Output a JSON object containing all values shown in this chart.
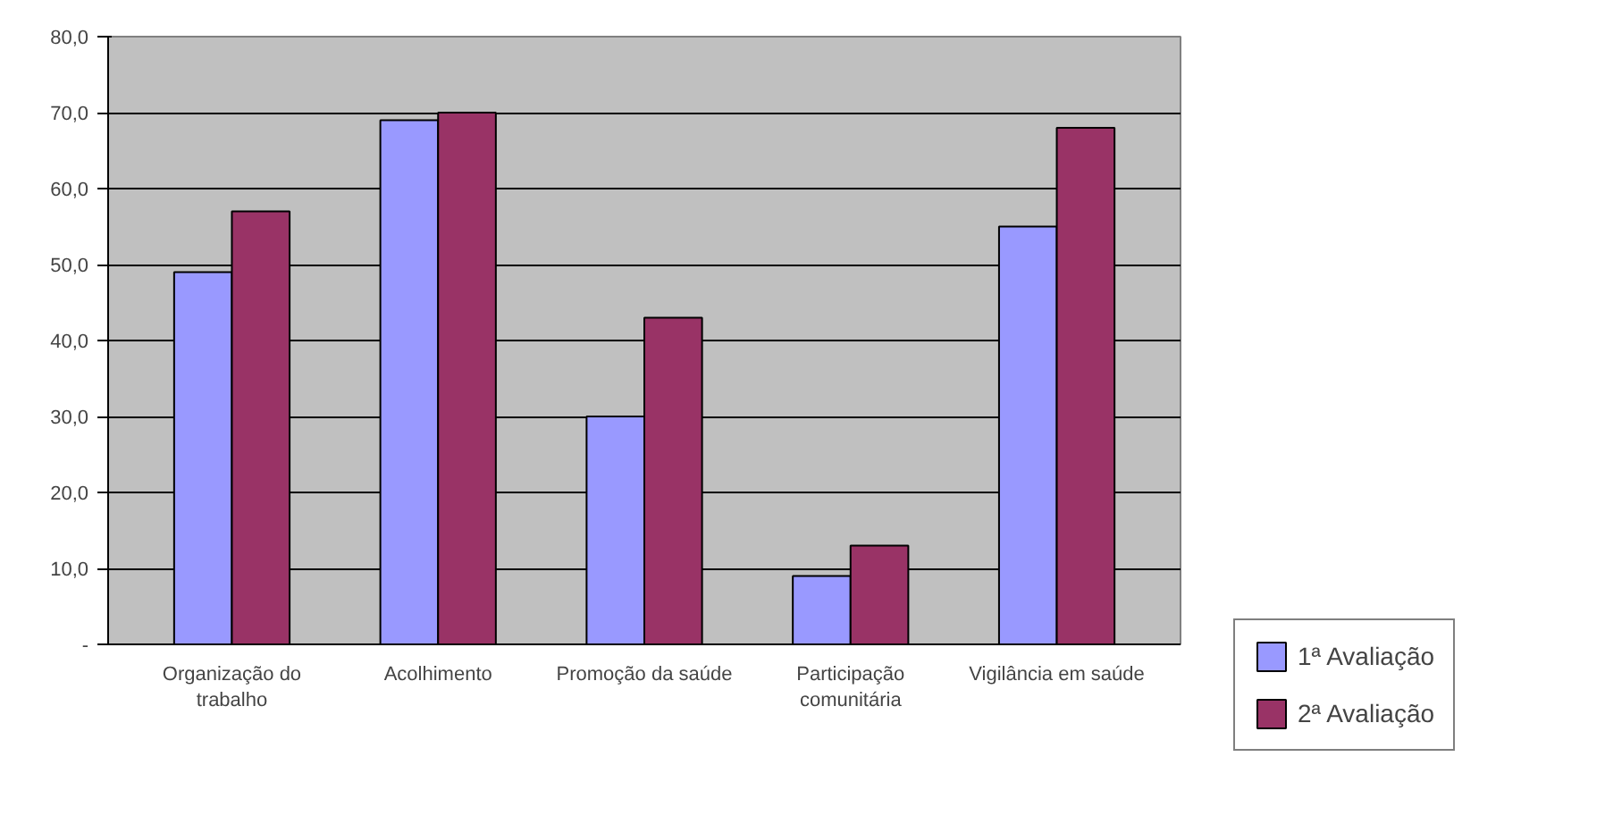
{
  "chart_data": {
    "type": "bar",
    "categories": [
      "Organização do trabalho",
      "Acolhimento",
      "Promoção da saúde",
      "Participação comunitária",
      "Vigilância em saúde"
    ],
    "series": [
      {
        "name": "1ª Avaliação",
        "color": "#9999ff",
        "values": [
          49,
          69,
          30,
          9,
          55
        ]
      },
      {
        "name": "2ª Avaliação",
        "color": "#993366",
        "values": [
          57,
          70,
          43,
          13,
          68
        ]
      }
    ],
    "ylim": [
      0,
      80
    ],
    "yticks": [
      {
        "value": 0,
        "label": "-"
      },
      {
        "value": 10,
        "label": "10,0"
      },
      {
        "value": 20,
        "label": "20,0"
      },
      {
        "value": 30,
        "label": "30,0"
      },
      {
        "value": 40,
        "label": "40,0"
      },
      {
        "value": 50,
        "label": "50,0"
      },
      {
        "value": 60,
        "label": "60,0"
      },
      {
        "value": 70,
        "label": "70,0"
      },
      {
        "value": 80,
        "label": "80,0"
      }
    ],
    "grid": "y",
    "legend": "bottom right"
  }
}
